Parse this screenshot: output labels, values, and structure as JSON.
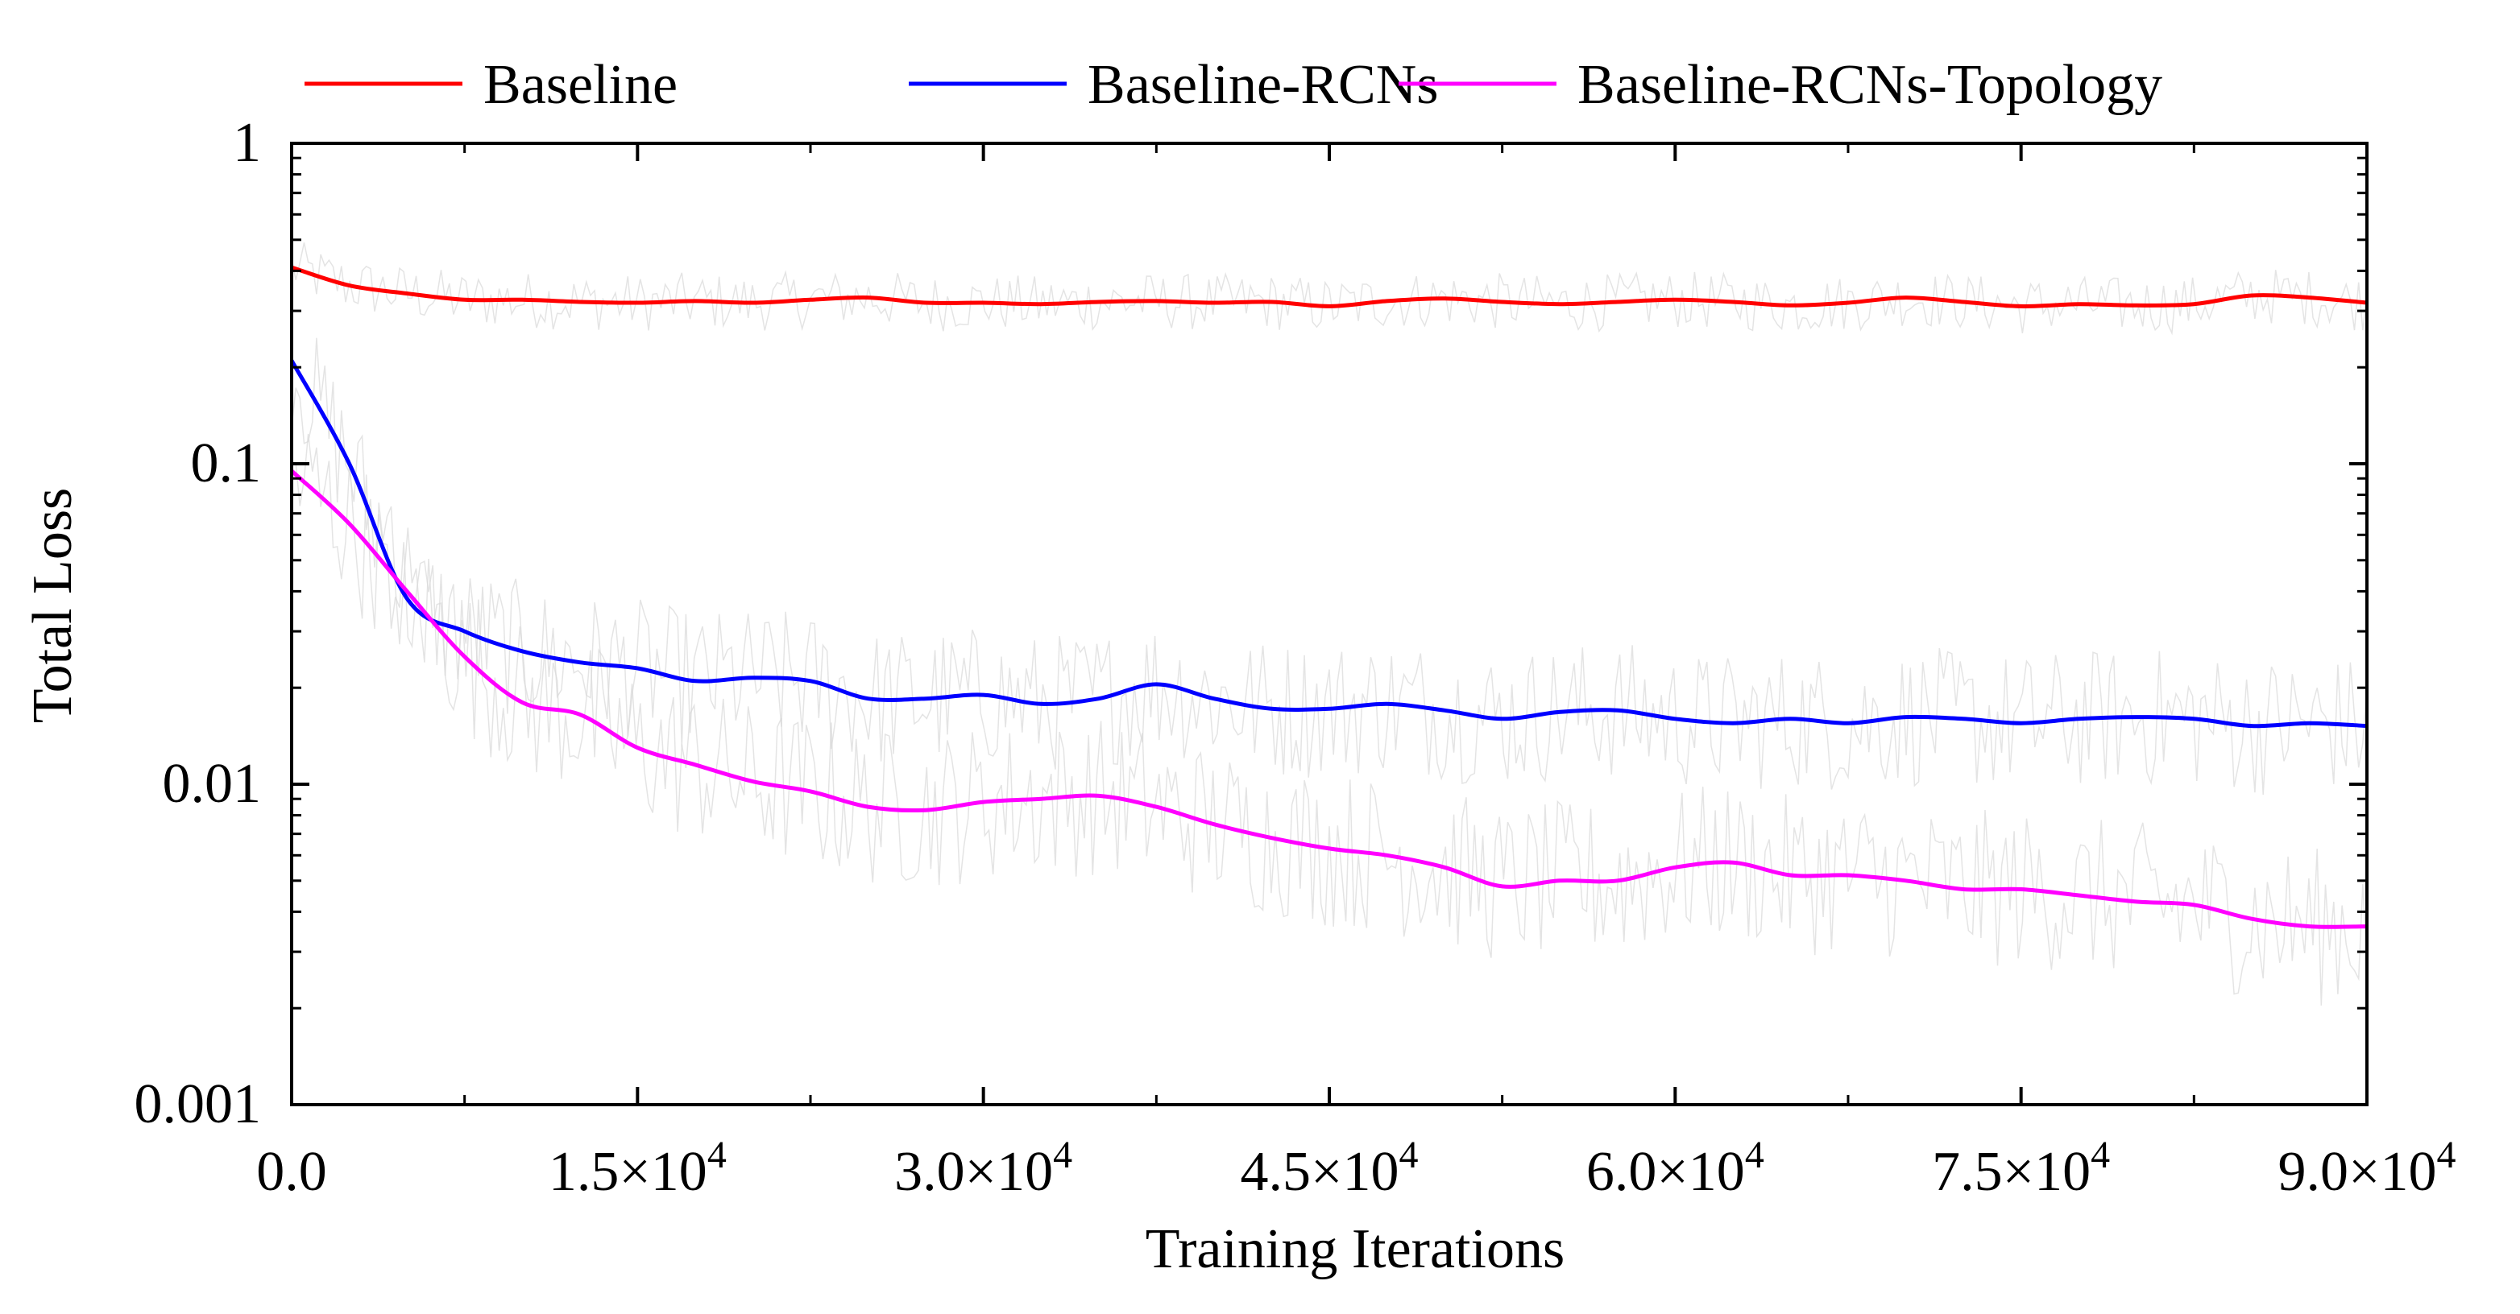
{
  "chart_data": {
    "type": "line",
    "title": "",
    "xlabel": "Training Iterations",
    "ylabel": "Total Loss",
    "xlim": [
      0,
      90000
    ],
    "ylim": [
      0.001,
      1
    ],
    "yscale": "log",
    "legend_position": "top",
    "x_ticks": [
      {
        "value": 0,
        "mantissa": "0.0",
        "exponent": ""
      },
      {
        "value": 15000,
        "mantissa": "1.5×10",
        "exponent": "4"
      },
      {
        "value": 30000,
        "mantissa": "3.0×10",
        "exponent": "4"
      },
      {
        "value": 45000,
        "mantissa": "4.5×10",
        "exponent": "4"
      },
      {
        "value": 60000,
        "mantissa": "6.0×10",
        "exponent": "4"
      },
      {
        "value": 75000,
        "mantissa": "7.5×10",
        "exponent": "4"
      },
      {
        "value": 90000,
        "mantissa": "9.0×10",
        "exponent": "4"
      }
    ],
    "y_ticks": [
      {
        "value": 1,
        "label": "1"
      },
      {
        "value": 0.1,
        "label": "0.1"
      },
      {
        "value": 0.01,
        "label": "0.01"
      },
      {
        "value": 0.001,
        "label": "0.001"
      }
    ],
    "x": [
      0,
      2500,
      5000,
      7500,
      10000,
      12500,
      15000,
      17500,
      20000,
      22500,
      25000,
      27500,
      30000,
      32500,
      35000,
      37500,
      40000,
      42500,
      45000,
      47500,
      50000,
      52500,
      55000,
      57500,
      60000,
      62500,
      65000,
      67500,
      70000,
      72500,
      75000,
      77500,
      80000,
      82500,
      85000,
      87500,
      90000
    ],
    "series": [
      {
        "name": "Baseline",
        "color": "#ff0000",
        "values": [
          0.41,
          0.36,
          0.34,
          0.325,
          0.325,
          0.32,
          0.318,
          0.322,
          0.318,
          0.325,
          0.33,
          0.318,
          0.318,
          0.315,
          0.32,
          0.322,
          0.318,
          0.32,
          0.31,
          0.322,
          0.328,
          0.32,
          0.315,
          0.32,
          0.325,
          0.32,
          0.312,
          0.318,
          0.33,
          0.32,
          0.31,
          0.315,
          0.312,
          0.315,
          0.335,
          0.33,
          0.318
        ]
      },
      {
        "name": "Baseline-RCNs",
        "color": "#0000ff",
        "values": [
          0.21,
          0.1,
          0.038,
          0.03,
          0.026,
          0.024,
          0.023,
          0.021,
          0.0215,
          0.021,
          0.0185,
          0.0185,
          0.019,
          0.0178,
          0.0185,
          0.0205,
          0.0185,
          0.0172,
          0.0172,
          0.0178,
          0.017,
          0.016,
          0.0168,
          0.017,
          0.016,
          0.0155,
          0.016,
          0.0155,
          0.0162,
          0.016,
          0.0155,
          0.016,
          0.0162,
          0.016,
          0.0152,
          0.0155,
          0.0152
        ]
      },
      {
        "name": "Baseline-RCNs-Topology",
        "color": "#ff00ff",
        "values": [
          0.095,
          0.065,
          0.04,
          0.025,
          0.018,
          0.0165,
          0.013,
          0.0115,
          0.0102,
          0.0095,
          0.0085,
          0.0083,
          0.0088,
          0.009,
          0.0092,
          0.0085,
          0.0075,
          0.0068,
          0.0063,
          0.006,
          0.0055,
          0.0048,
          0.005,
          0.005,
          0.0055,
          0.0057,
          0.0052,
          0.0052,
          0.005,
          0.0047,
          0.0047,
          0.0045,
          0.0043,
          0.0042,
          0.0038,
          0.0036,
          0.0036
        ]
      }
    ]
  }
}
